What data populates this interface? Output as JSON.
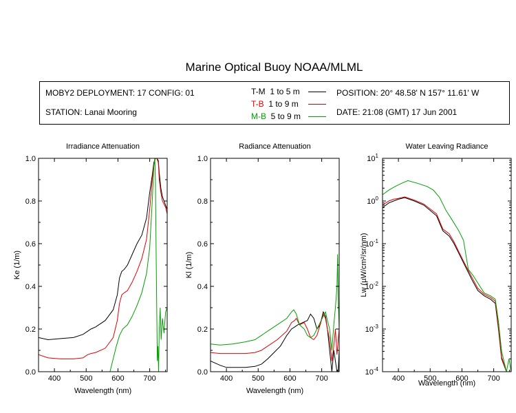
{
  "header": {
    "title": "Marine Optical Buoy NOAA/MLML",
    "deployment": "MOBY2 DEPLOYMENT: 17 CONFIG: 01",
    "station": "STATION: Lanai Mooring",
    "position": "POSITION: 20° 48.58' N   157° 11.61' W",
    "date": "DATE: 21:08 (GMT) 17 Jun 2001"
  },
  "legend": [
    {
      "code": "T-M",
      "range": "1 to 5  m",
      "color": "#000000"
    },
    {
      "code": "T-B",
      "range": "1 to 9  m",
      "color": "#e00000"
    },
    {
      "code": "M-B",
      "range": "5 to 9  m",
      "color": "#00a000"
    }
  ],
  "chart_data": [
    {
      "type": "line",
      "title": "Irradiance Attenuation",
      "xlabel": "Wavelength (nm)",
      "ylabel": "Ke  (1/m)",
      "xlim": [
        350,
        755
      ],
      "ylim": [
        0,
        1.0
      ],
      "xticks": [
        400,
        500,
        600,
        700
      ],
      "yticks": [
        0.0,
        0.2,
        0.4,
        0.6,
        0.8,
        1.0
      ],
      "ytick_labels": [
        "0.0",
        "0.2",
        "0.4",
        "0.6",
        "0.8",
        "1.0"
      ],
      "series": [
        {
          "name": "T-M",
          "color": "#000000",
          "x": [
            350,
            380,
            420,
            460,
            490,
            505,
            515,
            530,
            560,
            585,
            598,
            605,
            612,
            620,
            630,
            645,
            660,
            675,
            690,
            700,
            708,
            713,
            718,
            722,
            727,
            730,
            735,
            740,
            750,
            755
          ],
          "y": [
            0.16,
            0.15,
            0.155,
            0.16,
            0.175,
            0.19,
            0.2,
            0.21,
            0.24,
            0.29,
            0.36,
            0.44,
            0.47,
            0.48,
            0.5,
            0.55,
            0.6,
            0.64,
            0.72,
            0.84,
            0.92,
            0.98,
            1.0,
            1.0,
            0.99,
            0.93,
            0.86,
            0.82,
            0.78,
            0.76
          ]
        },
        {
          "name": "T-B",
          "color": "#e00000",
          "x": [
            350,
            380,
            420,
            460,
            490,
            505,
            515,
            530,
            560,
            585,
            598,
            605,
            612,
            620,
            630,
            645,
            660,
            675,
            690,
            700,
            708,
            713,
            718,
            722,
            727,
            730,
            735,
            740,
            750,
            755
          ],
          "y": [
            0.08,
            0.065,
            0.06,
            0.06,
            0.065,
            0.08,
            0.085,
            0.09,
            0.11,
            0.16,
            0.24,
            0.32,
            0.36,
            0.37,
            0.38,
            0.42,
            0.47,
            0.53,
            0.62,
            0.76,
            0.9,
            0.97,
            1.0,
            1.0,
            0.98,
            0.9,
            0.84,
            0.8,
            0.77,
            0.74
          ]
        },
        {
          "name": "M-B",
          "color": "#00a000",
          "x": [
            575,
            585,
            595,
            605,
            615,
            630,
            645,
            660,
            675,
            690,
            700,
            708,
            713,
            716,
            718,
            720,
            722,
            724,
            726,
            728,
            730,
            733,
            736,
            740,
            745,
            750,
            755
          ],
          "y": [
            0.0,
            0.06,
            0.12,
            0.17,
            0.2,
            0.22,
            0.26,
            0.31,
            0.37,
            0.46,
            0.58,
            0.8,
            0.96,
            1.0,
            0.9,
            0.6,
            0.3,
            0.05,
            0.12,
            0.0,
            0.2,
            0.3,
            0.15,
            0.25,
            0.18,
            0.28,
            0.3
          ]
        }
      ]
    },
    {
      "type": "line",
      "title": "Radiance Attenuation",
      "xlabel": "Wavelength (nm)",
      "ylabel": "Kl  (1/m)",
      "xlim": [
        350,
        755
      ],
      "ylim": [
        0,
        1.0
      ],
      "xticks": [
        400,
        500,
        600,
        700
      ],
      "yticks": [
        0.0,
        0.2,
        0.4,
        0.6,
        0.8,
        1.0
      ],
      "ytick_labels": [
        "0.0",
        "0.2",
        "0.4",
        "0.6",
        "0.8",
        "1.0"
      ],
      "series": [
        {
          "name": "T-M",
          "color": "#000000",
          "x": [
            350,
            365,
            380,
            400,
            430,
            460,
            490,
            510,
            530,
            550,
            570,
            590,
            605,
            615,
            625,
            640,
            655,
            665,
            675,
            685,
            695,
            705,
            712,
            718,
            725,
            732,
            738,
            743,
            748,
            752,
            755
          ],
          "y": [
            0.05,
            0.04,
            0.03,
            0.02,
            0.02,
            0.02,
            0.025,
            0.035,
            0.06,
            0.09,
            0.12,
            0.17,
            0.2,
            0.21,
            0.22,
            0.23,
            0.24,
            0.27,
            0.25,
            0.2,
            0.22,
            0.28,
            0.26,
            0.2,
            0.1,
            0.0,
            0.1,
            0.05,
            0.0,
            0.0,
            0.1
          ]
        },
        {
          "name": "T-B",
          "color": "#e00000",
          "x": [
            350,
            380,
            420,
            460,
            490,
            510,
            530,
            560,
            590,
            605,
            615,
            620,
            630,
            645,
            655,
            665,
            675,
            685,
            695,
            705,
            712,
            718,
            725,
            732,
            738,
            743,
            748,
            752,
            755
          ],
          "y": [
            0.09,
            0.085,
            0.085,
            0.085,
            0.09,
            0.1,
            0.12,
            0.15,
            0.19,
            0.23,
            0.24,
            0.25,
            0.22,
            0.23,
            0.2,
            0.16,
            0.15,
            0.17,
            0.22,
            0.27,
            0.25,
            0.2,
            0.15,
            0.05,
            0.12,
            0.2,
            0.08,
            0.15,
            0.2
          ]
        },
        {
          "name": "M-B",
          "color": "#00a000",
          "x": [
            350,
            380,
            420,
            460,
            490,
            510,
            530,
            560,
            590,
            605,
            612,
            620,
            630,
            645,
            655,
            665,
            675,
            685,
            695,
            705,
            712,
            718,
            725,
            732,
            738,
            743,
            748,
            750,
            752,
            755
          ],
          "y": [
            0.13,
            0.125,
            0.13,
            0.14,
            0.15,
            0.17,
            0.19,
            0.22,
            0.25,
            0.28,
            0.29,
            0.27,
            0.22,
            0.2,
            0.17,
            0.16,
            0.17,
            0.2,
            0.23,
            0.26,
            0.28,
            0.24,
            0.2,
            0.1,
            0.22,
            0.3,
            0.4,
            0.55,
            0.35,
            0.2
          ]
        }
      ]
    },
    {
      "type": "line",
      "title": "Water Leaving Radiance",
      "xlabel": "Wavelength (nm)",
      "ylabel": "Lw  (µW/cm²/sr/nm)",
      "xlim": [
        350,
        755
      ],
      "ylim": [
        0.0001,
        10
      ],
      "yscale": "log",
      "xticks": [
        400,
        500,
        600,
        700
      ],
      "yticks": [
        0.0001,
        0.001,
        0.01,
        0.1,
        1,
        10
      ],
      "ytick_labels": [
        {
          "base": "10",
          "exp": "-4"
        },
        {
          "base": "10",
          "exp": "-3"
        },
        {
          "base": "10",
          "exp": "-2"
        },
        {
          "base": "10",
          "exp": "-1"
        },
        {
          "base": "10",
          "exp": "0"
        },
        {
          "base": "10",
          "exp": "1"
        }
      ],
      "series": [
        {
          "name": "T-M",
          "color": "#000000",
          "x": [
            350,
            370,
            385,
            400,
            420,
            450,
            480,
            500,
            520,
            540,
            560,
            575,
            590,
            610,
            630,
            650,
            670,
            690,
            705,
            715,
            725,
            740,
            755
          ],
          "y": [
            0.7,
            0.9,
            1.0,
            1.1,
            1.2,
            1.0,
            0.8,
            0.6,
            0.45,
            0.2,
            0.15,
            0.1,
            0.06,
            0.03,
            0.015,
            0.008,
            0.006,
            0.005,
            0.004,
            0.001,
            0.0002,
            0.0001,
            0.0001
          ]
        },
        {
          "name": "T-B",
          "color": "#e00000",
          "x": [
            350,
            370,
            385,
            400,
            420,
            450,
            480,
            500,
            520,
            540,
            560,
            575,
            590,
            610,
            630,
            650,
            670,
            690,
            705,
            715,
            725,
            740,
            755
          ],
          "y": [
            0.8,
            1.0,
            1.1,
            1.15,
            1.25,
            1.05,
            0.85,
            0.65,
            0.5,
            0.22,
            0.17,
            0.11,
            0.065,
            0.033,
            0.017,
            0.009,
            0.0065,
            0.0055,
            0.0045,
            0.0011,
            0.00022,
            0.0001,
            0.0001
          ]
        },
        {
          "name": "M-B",
          "color": "#00a000",
          "x": [
            350,
            370,
            390,
            410,
            430,
            460,
            490,
            510,
            530,
            550,
            570,
            590,
            605,
            620,
            635,
            650,
            670,
            690,
            705,
            715,
            725,
            740,
            748,
            755
          ],
          "y": [
            1.4,
            1.8,
            2.2,
            2.6,
            3.0,
            2.6,
            2.2,
            1.8,
            1.2,
            0.6,
            0.35,
            0.2,
            0.12,
            0.025,
            0.018,
            0.012,
            0.007,
            0.006,
            0.005,
            0.0015,
            0.0003,
            0.0001,
            0.0002,
            0.0001
          ]
        }
      ]
    }
  ]
}
